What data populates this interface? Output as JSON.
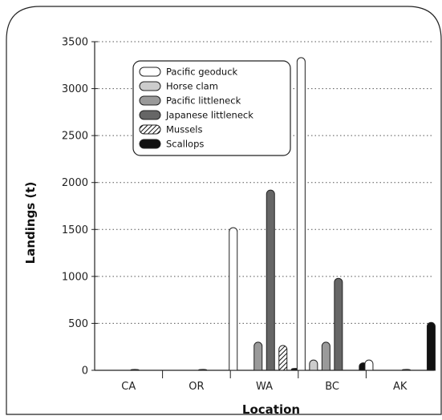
{
  "chart_data": {
    "type": "bar",
    "xlabel": "Location",
    "ylabel": "Landings (t)",
    "categories": [
      "CA",
      "OR",
      "WA",
      "BC",
      "AK"
    ],
    "ylim": [
      0,
      3500
    ],
    "yticks": [
      0,
      500,
      1000,
      1500,
      2000,
      2500,
      3000,
      3500
    ],
    "grid": "horizontal dotted",
    "legend_position": "top-left",
    "series": [
      {
        "name": "Pacific geoduck",
        "values": [
          0,
          0,
          1520,
          3330,
          110
        ],
        "fill": "#ffffff",
        "pattern": "none"
      },
      {
        "name": "Horse clam",
        "values": [
          0,
          0,
          0,
          110,
          0
        ],
        "fill": "#cccccc",
        "pattern": "none"
      },
      {
        "name": "Pacific littleneck",
        "values": [
          0,
          0,
          300,
          300,
          0
        ],
        "fill": "#9a9a9a",
        "pattern": "none"
      },
      {
        "name": "Japanese littleneck",
        "values": [
          10,
          10,
          1920,
          980,
          10
        ],
        "fill": "#666666",
        "pattern": "none"
      },
      {
        "name": "Mussels",
        "values": [
          0,
          0,
          265,
          0,
          0
        ],
        "fill": "#ffffff",
        "pattern": "hatch"
      },
      {
        "name": "Scallops",
        "values": [
          0,
          0,
          20,
          80,
          510
        ],
        "fill": "#111111",
        "pattern": "none"
      }
    ]
  }
}
